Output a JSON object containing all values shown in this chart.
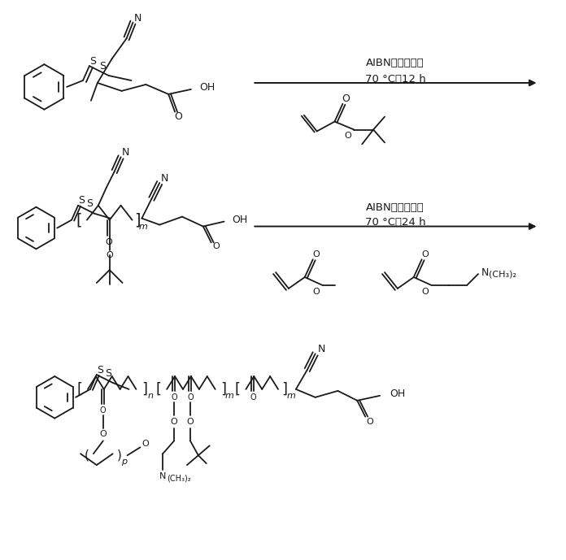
{
  "bg_color": "#ffffff",
  "line_color": "#1a1a1a",
  "text_color": "#1a1a1a",
  "arrow1_text1": "AIBN，二氧六环",
  "arrow1_text2": "70 °C，12 h",
  "arrow2_text1": "AIBN，二氧六环",
  "arrow2_text2": "70 °C，24 h",
  "figsize": [
    6.96,
    6.89
  ],
  "dpi": 100
}
